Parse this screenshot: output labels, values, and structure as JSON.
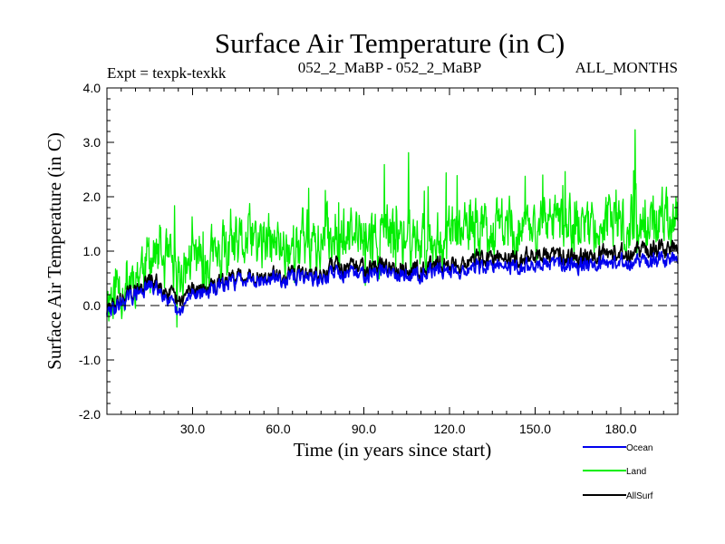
{
  "chart_data": {
    "type": "line",
    "title": "Surface Air Temperature (in C)",
    "subtitle_left": "Expt = texpk-texkk",
    "subtitle_center": "052_2_MaBP - 052_2_MaBP",
    "subtitle_right": "ALL_MONTHS",
    "xlabel": "Time (in years since start)",
    "ylabel": "Surface Air Temperature (in C)",
    "xlim": [
      0,
      200
    ],
    "ylim": [
      -2.0,
      4.0
    ],
    "xticks": [
      30,
      60,
      90,
      120,
      150,
      180
    ],
    "xtick_labels": [
      "30.0",
      "60.0",
      "90.0",
      "120.0",
      "150.0",
      "180.0"
    ],
    "yticks": [
      -2.0,
      -1.0,
      0.0,
      1.0,
      2.0,
      3.0,
      4.0
    ],
    "ytick_labels": [
      "-2.0",
      "-1.0",
      "0.0",
      "1.0",
      "2.0",
      "3.0",
      "4.0"
    ],
    "zero_line": 0.0,
    "series": [
      {
        "name": "Land",
        "color": "#00ee00",
        "x": [
          0,
          5,
          10,
          15,
          20,
          25,
          30,
          35,
          40,
          45,
          50,
          55,
          60,
          65,
          70,
          75,
          80,
          85,
          90,
          95,
          100,
          105,
          110,
          115,
          120,
          125,
          130,
          135,
          140,
          145,
          150,
          155,
          160,
          165,
          170,
          175,
          180,
          185,
          190,
          195,
          200
        ],
        "values": [
          0.2,
          0.4,
          0.6,
          0.9,
          0.8,
          0.5,
          0.9,
          0.8,
          0.9,
          1.0,
          1.2,
          1.1,
          1.1,
          1.1,
          1.2,
          1.1,
          1.4,
          1.2,
          1.3,
          1.2,
          1.3,
          1.2,
          1.2,
          1.3,
          1.3,
          1.3,
          1.4,
          1.4,
          1.5,
          1.4,
          1.5,
          1.4,
          1.5,
          1.4,
          1.5,
          1.5,
          1.4,
          1.5,
          1.5,
          1.6,
          1.6
        ]
      },
      {
        "name": "AllSurf",
        "color": "#000000",
        "x": [
          0,
          5,
          10,
          15,
          20,
          25,
          30,
          35,
          40,
          45,
          50,
          55,
          60,
          65,
          70,
          75,
          80,
          85,
          90,
          95,
          100,
          105,
          110,
          115,
          120,
          125,
          130,
          135,
          140,
          145,
          150,
          155,
          160,
          165,
          170,
          175,
          180,
          185,
          190,
          195,
          200
        ],
        "values": [
          -0.1,
          0.1,
          0.25,
          0.45,
          0.35,
          0.0,
          0.35,
          0.3,
          0.4,
          0.5,
          0.6,
          0.5,
          0.55,
          0.55,
          0.6,
          0.5,
          0.8,
          0.65,
          0.75,
          0.7,
          0.75,
          0.65,
          0.7,
          0.75,
          0.75,
          0.8,
          0.85,
          0.85,
          0.9,
          0.85,
          0.95,
          0.9,
          0.95,
          0.9,
          0.95,
          1.0,
          0.95,
          1.0,
          1.0,
          1.05,
          1.05
        ]
      },
      {
        "name": "Ocean",
        "color": "#0000ee",
        "x": [
          0,
          5,
          10,
          15,
          20,
          25,
          30,
          35,
          40,
          45,
          50,
          55,
          60,
          65,
          70,
          75,
          80,
          85,
          90,
          95,
          100,
          105,
          110,
          115,
          120,
          125,
          130,
          135,
          140,
          145,
          150,
          155,
          160,
          165,
          170,
          175,
          180,
          185,
          190,
          195,
          200
        ],
        "values": [
          -0.15,
          0.05,
          0.2,
          0.35,
          0.25,
          -0.2,
          0.25,
          0.25,
          0.35,
          0.45,
          0.55,
          0.45,
          0.5,
          0.5,
          0.55,
          0.45,
          0.65,
          0.55,
          0.6,
          0.6,
          0.65,
          0.55,
          0.6,
          0.65,
          0.65,
          0.65,
          0.7,
          0.7,
          0.75,
          0.7,
          0.75,
          0.75,
          0.8,
          0.75,
          0.8,
          0.8,
          0.8,
          0.8,
          0.8,
          0.85,
          0.85
        ]
      }
    ],
    "legend": [
      "Ocean",
      "Land",
      "AllSurf"
    ],
    "legend_placement": "bottom-right"
  }
}
